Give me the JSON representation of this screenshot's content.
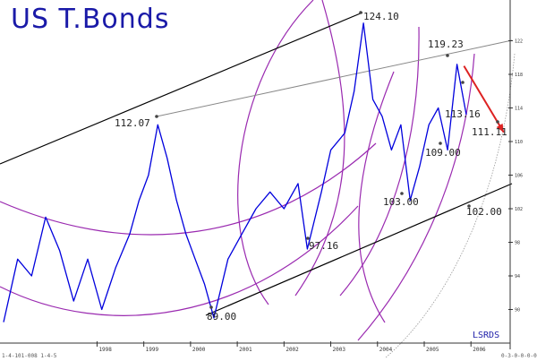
{
  "title": "US T.Bonds",
  "credit": "LSRDS",
  "footnote": "1-4-101-008 1-4-5",
  "footnote_right": "0-3-0-0-0-0",
  "colors": {
    "price": "#0000dd",
    "title": "#1a1aa8",
    "arcs": "#9a2ab0",
    "channel": "#000000",
    "projection": "#dd2222"
  },
  "chart_data": {
    "type": "line",
    "title": "US T.Bonds",
    "xlabel": "",
    "ylabel": "",
    "x_ticks": [
      "1998",
      "1999",
      "2000",
      "2001",
      "2002",
      "2003",
      "2004",
      "2005",
      "2006"
    ],
    "ylim": [
      86,
      126
    ],
    "annotations": [
      {
        "label": "124.10",
        "value": 124.1,
        "kind": "high"
      },
      {
        "label": "119.23",
        "value": 119.23,
        "kind": "high"
      },
      {
        "label": "113.16",
        "value": 113.16,
        "kind": "low"
      },
      {
        "label": "112.07",
        "value": 112.07,
        "kind": "high"
      },
      {
        "label": "111.11",
        "value": 111.11,
        "kind": "target"
      },
      {
        "label": "109.00",
        "value": 109.0,
        "kind": "low"
      },
      {
        "label": "103.00",
        "value": 103.0,
        "kind": "low"
      },
      {
        "label": "102.00",
        "value": 102.0,
        "kind": "target"
      },
      {
        "label": "97.16",
        "value": 97.16,
        "kind": "low"
      },
      {
        "label": "89.00",
        "value": 89.0,
        "kind": "low"
      }
    ],
    "series": [
      {
        "values": [
          {
            "x": "1996.0",
            "y": 88.5
          },
          {
            "x": "1996.3",
            "y": 96
          },
          {
            "x": "1996.6",
            "y": 94
          },
          {
            "x": "1996.9",
            "y": 101
          },
          {
            "x": "1997.2",
            "y": 97
          },
          {
            "x": "1997.5",
            "y": 91
          },
          {
            "x": "1997.8",
            "y": 96
          },
          {
            "x": "1998.1",
            "y": 90
          },
          {
            "x": "1998.4",
            "y": 95
          },
          {
            "x": "1998.7",
            "y": 99
          },
          {
            "x": "1998.9",
            "y": 103
          },
          {
            "x": "1999.1",
            "y": 106
          },
          {
            "x": "1999.3",
            "y": 112
          },
          {
            "x": "1999.5",
            "y": 108
          },
          {
            "x": "1999.7",
            "y": 103
          },
          {
            "x": "1999.9",
            "y": 99
          },
          {
            "x": "2000.1",
            "y": 96
          },
          {
            "x": "2000.3",
            "y": 93
          },
          {
            "x": "2000.5",
            "y": 89
          },
          {
            "x": "2000.8",
            "y": 96
          },
          {
            "x": "2001.1",
            "y": 99
          },
          {
            "x": "2001.4",
            "y": 102
          },
          {
            "x": "2001.7",
            "y": 104
          },
          {
            "x": "2002.0",
            "y": 102
          },
          {
            "x": "2002.3",
            "y": 105
          },
          {
            "x": "2002.5",
            "y": 97.2
          },
          {
            "x": "2002.8",
            "y": 104
          },
          {
            "x": "2003.0",
            "y": 109
          },
          {
            "x": "2003.3",
            "y": 111
          },
          {
            "x": "2003.5",
            "y": 116
          },
          {
            "x": "2003.7",
            "y": 124.1
          },
          {
            "x": "2003.9",
            "y": 115
          },
          {
            "x": "2004.1",
            "y": 113
          },
          {
            "x": "2004.3",
            "y": 109
          },
          {
            "x": "2004.5",
            "y": 112
          },
          {
            "x": "2004.7",
            "y": 103
          },
          {
            "x": "2004.9",
            "y": 107
          },
          {
            "x": "2005.1",
            "y": 112
          },
          {
            "x": "2005.3",
            "y": 114
          },
          {
            "x": "2005.5",
            "y": 109
          },
          {
            "x": "2005.7",
            "y": 119.2
          },
          {
            "x": "2005.9",
            "y": 113.2
          }
        ]
      }
    ],
    "projection": {
      "from": {
        "x": "2005.85",
        "y": 119.0
      },
      "to": {
        "x": "2006.7",
        "y": 111.1
      }
    }
  }
}
